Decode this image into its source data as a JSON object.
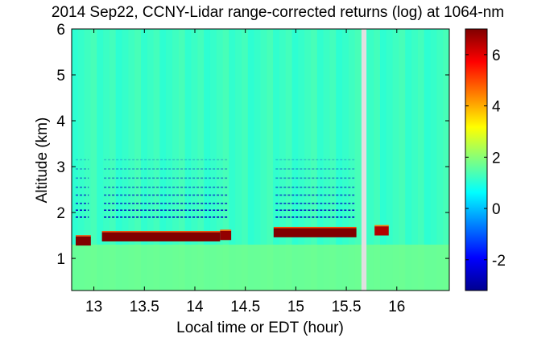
{
  "chart_data": {
    "type": "heatmap",
    "title": "2014 Sep22, CCNY-Lidar range-corrected returns (log) at 1064-nm",
    "xlabel": "Local time or EDT (hour)",
    "ylabel": "Altitude (km)",
    "xlim": [
      12.78,
      16.52
    ],
    "ylim": [
      0.3,
      6.0
    ],
    "x_ticks": [
      13,
      13.5,
      14,
      14.5,
      15,
      15.5,
      16
    ],
    "x_tick_labels": [
      "13",
      "13.5",
      "14",
      "14.5",
      "15",
      "15.5",
      "16"
    ],
    "y_ticks": [
      1,
      2,
      3,
      4,
      5,
      6
    ],
    "y_tick_labels": [
      "1",
      "2",
      "3",
      "4",
      "5",
      "6"
    ],
    "colorbar": {
      "colormap": "jet",
      "clim": [
        -3.2,
        7.0
      ],
      "ticks": [
        -2,
        0,
        2,
        4,
        6
      ],
      "tick_labels": [
        "-2",
        "0",
        "2",
        "4",
        "6"
      ]
    },
    "background_log_return": 1.2,
    "no_data_intervals": [
      [
        15.65,
        15.7
      ]
    ],
    "boundary_layer_top_km": [
      {
        "x_start": 12.82,
        "x_end": 12.97,
        "altitude": 1.38,
        "value": 7.0
      },
      {
        "x_start": 13.08,
        "x_end": 14.25,
        "altitude": 1.47,
        "value": 7.0
      },
      {
        "x_start": 14.25,
        "x_end": 14.36,
        "altitude": 1.5,
        "value": 6.8
      },
      {
        "x_start": 14.78,
        "x_end": 15.6,
        "altitude": 1.56,
        "value": 7.0
      },
      {
        "x_start": 15.78,
        "x_end": 15.92,
        "altitude": 1.6,
        "value": 6.5
      }
    ],
    "aerosol_streak_altitudes_km": [
      1.9,
      2.05,
      2.2,
      2.38,
      2.55,
      2.75,
      2.95,
      3.15
    ],
    "aerosol_streak_value": -2.5,
    "aerosol_streak_intervals": [
      [
        12.82,
        12.95
      ],
      [
        13.1,
        14.32
      ],
      [
        14.8,
        15.58
      ]
    ],
    "near_ground_layer": {
      "altitude_range": [
        0.3,
        1.3
      ],
      "value": 1.8
    }
  }
}
